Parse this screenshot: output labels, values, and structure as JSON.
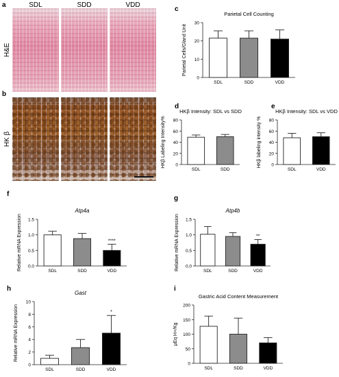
{
  "micrographs": {
    "columns": [
      "SDL",
      "SDD",
      "VDD"
    ],
    "rows": [
      {
        "panel": "a",
        "label": "H&E"
      },
      {
        "panel": "b",
        "label": "HK β"
      }
    ]
  },
  "chart_data": [
    {
      "panel": "c",
      "type": "bar",
      "title": "Parietal Cell Counting",
      "categories": [
        "SDL",
        "SDD",
        "VDD"
      ],
      "values": [
        21.5,
        21.5,
        21
      ],
      "errors": [
        4,
        4,
        5
      ],
      "colors": [
        "#ffffff",
        "#8c8c8c",
        "#000000"
      ],
      "xlabel": "",
      "ylabel": "Parietal Cells/Gland Unit",
      "ylim": [
        0,
        30
      ],
      "yticks": [
        0,
        10,
        20,
        30
      ],
      "annotations": [
        "",
        "",
        ""
      ]
    },
    {
      "panel": "d",
      "type": "bar",
      "title": "HKβ Intensity: SDL vs SDD",
      "categories": [
        "SDL",
        "SDD"
      ],
      "values": [
        49,
        50
      ],
      "errors": [
        4,
        4
      ],
      "colors": [
        "#ffffff",
        "#8c8c8c"
      ],
      "xlabel": "",
      "ylabel": "HKβ Labeling Intensity%",
      "ylim": [
        0,
        80
      ],
      "yticks": [
        0,
        20,
        40,
        60,
        80
      ],
      "annotations": [
        "",
        ""
      ]
    },
    {
      "panel": "e",
      "type": "bar",
      "title": "HKβ Intensity: SDL vs VDD",
      "categories": [
        "SDL",
        "VDD"
      ],
      "values": [
        48,
        50
      ],
      "errors": [
        8,
        7
      ],
      "colors": [
        "#ffffff",
        "#000000"
      ],
      "xlabel": "",
      "ylabel": "HKβ labeling intensity %",
      "ylim": [
        0,
        80
      ],
      "yticks": [
        0,
        20,
        40,
        60,
        80
      ],
      "annotations": [
        "",
        ""
      ]
    },
    {
      "panel": "f",
      "type": "bar",
      "title": "Atp4a",
      "categories": [
        "SDL",
        "SDD",
        "VDD"
      ],
      "values": [
        1.0,
        0.88,
        0.5
      ],
      "errors": [
        0.12,
        0.17,
        0.2
      ],
      "colors": [
        "#ffffff",
        "#8c8c8c",
        "#000000"
      ],
      "xlabel": "",
      "ylabel": "Relative mRNA Expression",
      "ylim": [
        0,
        1.5
      ],
      "yticks": [
        0.0,
        0.5,
        1.0,
        1.5
      ],
      "annotations": [
        "",
        "",
        "****"
      ]
    },
    {
      "panel": "g",
      "type": "bar",
      "title": "Atp4b",
      "categories": [
        "SDL",
        "SDD",
        "VDD"
      ],
      "values": [
        1.02,
        0.95,
        0.7
      ],
      "errors": [
        0.25,
        0.12,
        0.15
      ],
      "colors": [
        "#ffffff",
        "#8c8c8c",
        "#000000"
      ],
      "xlabel": "",
      "ylabel": "Relative mRNA Expression",
      "ylim": [
        0,
        1.5
      ],
      "yticks": [
        0.0,
        0.5,
        1.0,
        1.5
      ],
      "annotations": [
        "",
        "",
        "**"
      ]
    },
    {
      "panel": "h",
      "type": "bar",
      "title": "Gast",
      "categories": [
        "SDL",
        "SDD",
        "VDD"
      ],
      "values": [
        1.0,
        2.7,
        5.0
      ],
      "errors": [
        0.5,
        1.3,
        2.8
      ],
      "colors": [
        "#ffffff",
        "#8c8c8c",
        "#000000"
      ],
      "xlabel": "",
      "ylabel": "Relative mRNA Expression",
      "ylim": [
        0,
        10
      ],
      "yticks": [
        0,
        2,
        4,
        6,
        8,
        10
      ],
      "annotations": [
        "",
        "",
        "*"
      ]
    },
    {
      "panel": "i",
      "type": "bar",
      "title": "Gastric Acid Content Measurement",
      "categories": [
        "SDL",
        "SDD",
        "VDD"
      ],
      "values": [
        127,
        100,
        70
      ],
      "errors": [
        35,
        55,
        18
      ],
      "colors": [
        "#ffffff",
        "#8c8c8c",
        "#000000"
      ],
      "xlabel": "",
      "ylabel": "µEq H+/Kg",
      "ylim": [
        0,
        200
      ],
      "yticks": [
        0,
        50,
        100,
        150,
        200
      ],
      "annotations": [
        "",
        "",
        ""
      ]
    }
  ]
}
